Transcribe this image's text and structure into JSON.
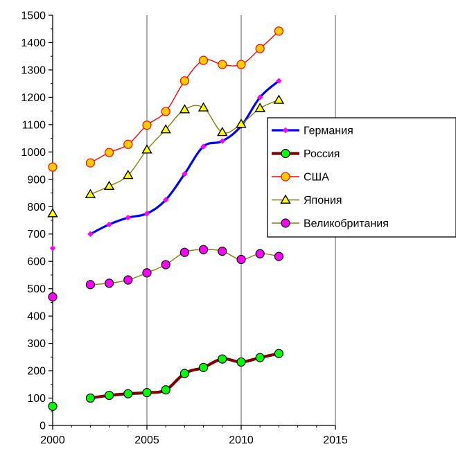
{
  "chart_data": {
    "type": "line",
    "title": "",
    "xlabel": "",
    "ylabel": "",
    "xlim": [
      2000,
      2015
    ],
    "ylim": [
      0,
      1500
    ],
    "x_ticks": [
      2000,
      2005,
      2010,
      2015
    ],
    "y_ticks": [
      0,
      100,
      200,
      300,
      400,
      500,
      600,
      700,
      800,
      900,
      1000,
      1100,
      1200,
      1300,
      1400,
      1500
    ],
    "grid": "vertical major gridlines on",
    "legend_position": "right",
    "series": [
      {
        "name": "Германия",
        "line_color": "#0000ff",
        "marker": "diamond",
        "marker_fill": "#ff00ff",
        "marker_stroke": "#ff00ff",
        "points": [
          [
            2000,
            648
          ],
          [
            2002,
            700
          ],
          [
            2003,
            735
          ],
          [
            2004,
            760
          ],
          [
            2005,
            775
          ],
          [
            2006,
            825
          ],
          [
            2007,
            920
          ],
          [
            2008,
            1020
          ],
          [
            2009,
            1040
          ],
          [
            2010,
            1095
          ],
          [
            2011,
            1200
          ],
          [
            2012,
            1260
          ]
        ]
      },
      {
        "name": "Россия",
        "line_color": "#800000",
        "marker": "circle",
        "marker_fill": "#00ff00",
        "marker_stroke": "#000000",
        "points": [
          [
            2000,
            70
          ],
          [
            2002,
            100
          ],
          [
            2003,
            110
          ],
          [
            2004,
            116
          ],
          [
            2005,
            120
          ],
          [
            2006,
            130
          ],
          [
            2007,
            190
          ],
          [
            2008,
            212
          ],
          [
            2009,
            243
          ],
          [
            2010,
            232
          ],
          [
            2011,
            248
          ],
          [
            2012,
            263
          ]
        ]
      },
      {
        "name": "США",
        "line_color": "#ff0000",
        "marker": "circle",
        "marker_fill": "#ffcc00",
        "marker_stroke": "#ff0000",
        "points": [
          [
            2000,
            945
          ],
          [
            2002,
            960
          ],
          [
            2003,
            998
          ],
          [
            2004,
            1028
          ],
          [
            2005,
            1098
          ],
          [
            2006,
            1148
          ],
          [
            2007,
            1260
          ],
          [
            2008,
            1335
          ],
          [
            2009,
            1320
          ],
          [
            2010,
            1320
          ],
          [
            2011,
            1378
          ],
          [
            2012,
            1442
          ]
        ]
      },
      {
        "name": "Япония",
        "line_color": "#808000",
        "marker": "triangle",
        "marker_fill": "#ffff00",
        "marker_stroke": "#000000",
        "points": [
          [
            2000,
            775
          ],
          [
            2002,
            845
          ],
          [
            2003,
            875
          ],
          [
            2004,
            915
          ],
          [
            2005,
            1008
          ],
          [
            2006,
            1082
          ],
          [
            2007,
            1155
          ],
          [
            2008,
            1162
          ],
          [
            2009,
            1072
          ],
          [
            2010,
            1102
          ],
          [
            2011,
            1160
          ],
          [
            2012,
            1190
          ]
        ]
      },
      {
        "name": "Великобритания",
        "line_color": "#808000",
        "marker": "circle",
        "marker_fill": "#ff00ff",
        "marker_stroke": "#000000",
        "points": [
          [
            2000,
            470
          ],
          [
            2002,
            515
          ],
          [
            2003,
            520
          ],
          [
            2004,
            532
          ],
          [
            2005,
            558
          ],
          [
            2006,
            588
          ],
          [
            2007,
            633
          ],
          [
            2008,
            643
          ],
          [
            2009,
            637
          ],
          [
            2010,
            607
          ],
          [
            2011,
            628
          ],
          [
            2012,
            618
          ]
        ]
      }
    ]
  }
}
